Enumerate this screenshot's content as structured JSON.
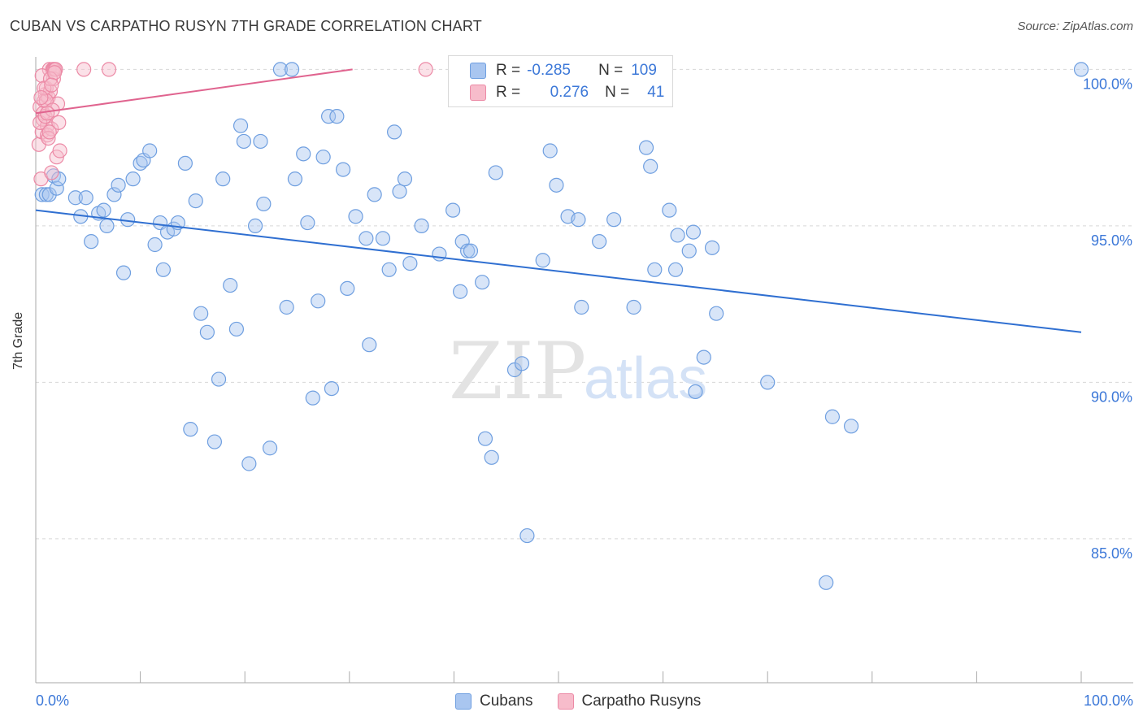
{
  "title": "CUBAN VS CARPATHO RUSYN 7TH GRADE CORRELATION CHART",
  "source": "Source: ZipAtlas.com",
  "watermark": {
    "zip": "ZIP",
    "atlas": "atlas"
  },
  "legend_stats": [
    {
      "r_label": "R =",
      "r_value": "-0.285",
      "n_label": "N =",
      "n_value": "109",
      "color": "#a9c6f0",
      "edge": "#6f9fe0"
    },
    {
      "r_label": "R =",
      "r_value": "0.276",
      "n_label": "N =",
      "n_value": "41",
      "color": "#f7bccb",
      "edge": "#ec8aa6"
    }
  ],
  "legend_bottom": [
    {
      "name": "Cubans",
      "color": "#a9c6f0",
      "edge": "#6f9fe0"
    },
    {
      "name": "Carpatho Rusyns",
      "color": "#f7bccb",
      "edge": "#ec8aa6"
    }
  ],
  "chart_data": {
    "type": "scatter",
    "title": "CUBAN VS CARPATHO RUSYN 7TH GRADE CORRELATION CHART",
    "xlabel": "",
    "ylabel": "7th Grade",
    "xlim": [
      0,
      100
    ],
    "ylim": [
      80.4,
      100.4
    ],
    "x_tick_labels": [
      "0.0%",
      "100.0%"
    ],
    "y_ticks": [
      85,
      90,
      95,
      100
    ],
    "y_tick_labels": [
      "85.0%",
      "90.0%",
      "95.0%",
      "100.0%"
    ],
    "grid": true,
    "colors": {
      "blue_line": "#2f6fd1",
      "pink_line": "#e0648f",
      "axis_text": "#3c78d8"
    },
    "series": [
      {
        "name": "Cubans",
        "color": "#a9c6f0",
        "trend": {
          "x": [
            0,
            100
          ],
          "y": [
            95.5,
            91.6
          ]
        },
        "points": [
          [
            0.6,
            96.0
          ],
          [
            1.0,
            96.0
          ],
          [
            1.3,
            96.0
          ],
          [
            1.7,
            96.6
          ],
          [
            2.0,
            96.2
          ],
          [
            2.2,
            96.5
          ],
          [
            3.8,
            95.9
          ],
          [
            4.3,
            95.3
          ],
          [
            4.8,
            95.9
          ],
          [
            5.3,
            94.5
          ],
          [
            6.0,
            95.4
          ],
          [
            6.5,
            95.5
          ],
          [
            6.8,
            95.0
          ],
          [
            7.5,
            96.0
          ],
          [
            7.9,
            96.3
          ],
          [
            8.4,
            93.5
          ],
          [
            8.8,
            95.2
          ],
          [
            9.3,
            96.5
          ],
          [
            10.0,
            97.0
          ],
          [
            10.3,
            97.1
          ],
          [
            10.9,
            97.4
          ],
          [
            11.4,
            94.4
          ],
          [
            11.9,
            95.1
          ],
          [
            12.2,
            93.6
          ],
          [
            12.6,
            94.8
          ],
          [
            13.2,
            94.9
          ],
          [
            13.6,
            95.1
          ],
          [
            14.3,
            97.0
          ],
          [
            14.8,
            88.5
          ],
          [
            15.3,
            95.8
          ],
          [
            15.8,
            92.2
          ],
          [
            16.4,
            91.6
          ],
          [
            17.1,
            88.1
          ],
          [
            17.5,
            90.1
          ],
          [
            17.9,
            96.5
          ],
          [
            18.6,
            93.1
          ],
          [
            19.2,
            91.7
          ],
          [
            19.6,
            98.2
          ],
          [
            19.9,
            97.7
          ],
          [
            20.4,
            87.4
          ],
          [
            21.0,
            95.0
          ],
          [
            21.5,
            97.7
          ],
          [
            21.8,
            95.7
          ],
          [
            22.4,
            87.9
          ],
          [
            23.4,
            100.0
          ],
          [
            24.0,
            92.4
          ],
          [
            24.5,
            100.0
          ],
          [
            24.8,
            96.5
          ],
          [
            25.6,
            97.3
          ],
          [
            26.0,
            95.1
          ],
          [
            26.5,
            89.5
          ],
          [
            27.0,
            92.6
          ],
          [
            27.5,
            97.2
          ],
          [
            28.0,
            98.5
          ],
          [
            28.3,
            89.8
          ],
          [
            28.8,
            98.5
          ],
          [
            29.4,
            96.8
          ],
          [
            29.8,
            93.0
          ],
          [
            30.6,
            95.3
          ],
          [
            31.6,
            94.6
          ],
          [
            31.9,
            91.2
          ],
          [
            32.4,
            96.0
          ],
          [
            33.2,
            94.6
          ],
          [
            33.8,
            93.6
          ],
          [
            34.3,
            98.0
          ],
          [
            34.8,
            96.1
          ],
          [
            35.3,
            96.5
          ],
          [
            35.8,
            93.8
          ],
          [
            36.9,
            95.0
          ],
          [
            38.6,
            94.1
          ],
          [
            39.9,
            95.5
          ],
          [
            40.6,
            92.9
          ],
          [
            40.8,
            94.5
          ],
          [
            41.3,
            94.2
          ],
          [
            41.6,
            94.2
          ],
          [
            42.7,
            93.2
          ],
          [
            43.0,
            88.2
          ],
          [
            43.6,
            87.6
          ],
          [
            44.0,
            96.7
          ],
          [
            45.8,
            90.4
          ],
          [
            46.5,
            90.6
          ],
          [
            47.0,
            85.1
          ],
          [
            48.5,
            93.9
          ],
          [
            49.2,
            97.4
          ],
          [
            49.8,
            96.3
          ],
          [
            50.9,
            95.3
          ],
          [
            51.9,
            95.2
          ],
          [
            52.2,
            92.4
          ],
          [
            53.9,
            94.5
          ],
          [
            55.3,
            95.2
          ],
          [
            57.2,
            92.4
          ],
          [
            58.4,
            97.5
          ],
          [
            58.8,
            96.9
          ],
          [
            59.2,
            93.6
          ],
          [
            60.6,
            95.5
          ],
          [
            61.2,
            93.6
          ],
          [
            61.4,
            94.7
          ],
          [
            62.5,
            94.2
          ],
          [
            62.9,
            94.8
          ],
          [
            63.1,
            89.7
          ],
          [
            63.9,
            90.8
          ],
          [
            64.7,
            94.3
          ],
          [
            65.1,
            92.2
          ],
          [
            70.0,
            90.0
          ],
          [
            75.6,
            83.6
          ],
          [
            76.2,
            88.9
          ],
          [
            78.0,
            88.6
          ],
          [
            100.0,
            100.0
          ]
        ]
      },
      {
        "name": "Carpatho Rusyns",
        "color": "#f7bccb",
        "trend": {
          "x": [
            0,
            30.3
          ],
          "y": [
            98.6,
            100.0
          ]
        },
        "points": [
          [
            0.3,
            97.6
          ],
          [
            0.4,
            98.8
          ],
          [
            0.5,
            96.5
          ],
          [
            0.6,
            98.0
          ],
          [
            0.7,
            98.4
          ],
          [
            0.7,
            98.6
          ],
          [
            0.8,
            99.0
          ],
          [
            0.9,
            99.2
          ],
          [
            1.0,
            99.4
          ],
          [
            1.1,
            98.2
          ],
          [
            1.1,
            97.9
          ],
          [
            1.2,
            99.1
          ],
          [
            1.3,
            100.0
          ],
          [
            1.4,
            99.3
          ],
          [
            1.5,
            96.7
          ],
          [
            1.5,
            98.1
          ],
          [
            1.6,
            100.0
          ],
          [
            1.7,
            100.0
          ],
          [
            1.7,
            99.7
          ],
          [
            1.8,
            100.0
          ],
          [
            1.9,
            100.0
          ],
          [
            2.0,
            97.2
          ],
          [
            2.1,
            98.9
          ],
          [
            2.2,
            98.3
          ],
          [
            2.3,
            97.4
          ],
          [
            0.4,
            98.3
          ],
          [
            0.6,
            99.8
          ],
          [
            0.9,
            98.5
          ],
          [
            1.2,
            97.8
          ],
          [
            1.0,
            99.0
          ],
          [
            0.8,
            99.4
          ],
          [
            1.6,
            98.7
          ],
          [
            1.3,
            98.0
          ],
          [
            1.4,
            99.7
          ],
          [
            1.8,
            99.9
          ],
          [
            0.5,
            99.1
          ],
          [
            1.1,
            98.6
          ],
          [
            4.6,
            100.0
          ],
          [
            7.0,
            100.0
          ],
          [
            37.3,
            100.0
          ],
          [
            1.5,
            99.5
          ]
        ]
      }
    ]
  }
}
